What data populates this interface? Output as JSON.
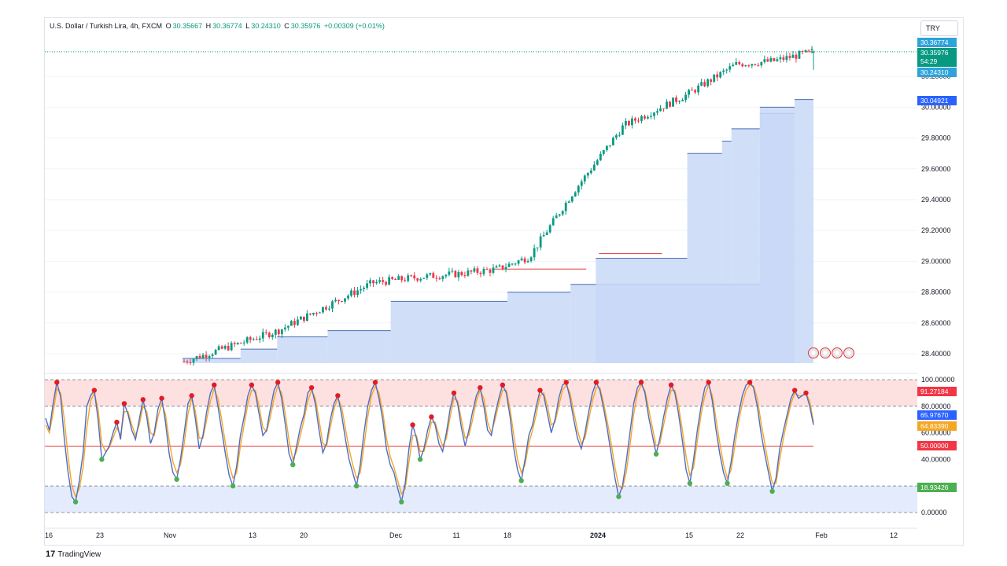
{
  "header": {
    "symbol": "U.S. Dollar / Turkish Lira, 4h, FXCM",
    "open_label": "O",
    "open": "30.35667",
    "high_label": "H",
    "high": "30.36774",
    "low_label": "L",
    "low": "30.24310",
    "close_label": "C",
    "close": "30.35976",
    "change": "+0.00309 (+0.01%)"
  },
  "currency": "TRY",
  "brand": "TradingView",
  "price_tags": {
    "high": "30.36774",
    "last": "30.35976",
    "countdown": "54:29",
    "low": "30.24310",
    "level": "30.04921"
  },
  "osc_tags": {
    "upper_value": "91.27184",
    "k_value": "65.97670",
    "d_value": "64.83390",
    "mid": "50.00000",
    "low_value": "18.93426"
  },
  "colors": {
    "up": "#089981",
    "down": "#f23645",
    "fill": "#c9d8f7",
    "osc_k": "#4e6cc2",
    "osc_d": "#f5a623",
    "high_tag": "#2ea3d9",
    "last_tag": "#089981",
    "level_tag": "#2962ff",
    "upper_band": "#fde0e0",
    "lower_band": "#e3ebfd"
  },
  "chart_data": [
    {
      "type": "candlestick",
      "title": "U.S. Dollar / Turkish Lira, 4h, FXCM",
      "ylabel": "TRY",
      "ylim": [
        28.35,
        30.42
      ],
      "yticks": [
        "30.20000",
        "30.00000",
        "29.80000",
        "29.60000",
        "29.40000",
        "29.20000",
        "29.00000",
        "28.80000",
        "28.60000",
        "28.40000"
      ],
      "yvals": [
        30.2,
        30.0,
        29.8,
        29.6,
        29.4,
        29.2,
        29.0,
        28.8,
        28.6,
        28.4
      ],
      "xticks": [
        "16",
        "23",
        "Nov",
        "13",
        "20",
        "Dec",
        "11",
        "18",
        "2024",
        "15",
        "22",
        "Feb",
        "12"
      ],
      "trend": {
        "x": [
          0,
          0.15,
          0.3,
          0.38,
          0.44,
          0.5,
          0.55,
          0.62,
          0.7,
          0.8,
          0.88,
          0.94,
          1.0
        ],
        "y": [
          28.35,
          28.55,
          28.86,
          28.9,
          28.92,
          28.95,
          29.03,
          29.45,
          29.88,
          30.08,
          30.28,
          30.3,
          30.36
        ]
      },
      "last": {
        "open": 30.35667,
        "high": 30.36774,
        "low": 30.2431,
        "close": 30.35976
      },
      "support_steps": [
        {
          "x0": 0.0,
          "x1": 0.092,
          "level": 28.37
        },
        {
          "x0": 0.092,
          "x1": 0.15,
          "level": 28.43
        },
        {
          "x0": 0.15,
          "x1": 0.23,
          "level": 28.51
        },
        {
          "x0": 0.23,
          "x1": 0.33,
          "level": 28.55
        },
        {
          "x0": 0.33,
          "x1": 0.49,
          "level": 28.74
        },
        {
          "x0": 0.49,
          "x1": 0.515,
          "level": 28.74
        },
        {
          "x0": 0.515,
          "x1": 0.615,
          "level": 28.8
        },
        {
          "x0": 0.615,
          "x1": 0.97,
          "level": 28.85
        },
        {
          "x0": 0.655,
          "x1": 0.8,
          "level": 29.02
        },
        {
          "x0": 0.8,
          "x1": 0.855,
          "level": 29.7
        },
        {
          "x0": 0.855,
          "x1": 0.87,
          "level": 29.78
        },
        {
          "x0": 0.87,
          "x1": 0.915,
          "level": 29.86
        },
        {
          "x0": 0.915,
          "x1": 0.97,
          "level": 29.96
        },
        {
          "x0": 0.915,
          "x1": 0.97,
          "level": 30.0
        },
        {
          "x0": 0.97,
          "x1": 1.0,
          "level": 30.05
        }
      ],
      "resistance_boxes": [
        {
          "x0": 0.49,
          "x1": 0.64,
          "top": 28.95
        },
        {
          "x0": 0.66,
          "x1": 0.76,
          "top": 29.05
        },
        {
          "x0": 0.988,
          "x1": 1.0,
          "top": 30.36
        }
      ]
    },
    {
      "type": "line",
      "title": "",
      "ylim": [
        0,
        100
      ],
      "yticks": [
        "100.00000",
        "80.00000",
        "60.00000",
        "40.00000",
        "0.00000"
      ],
      "yvals": [
        100,
        80,
        60,
        40,
        0
      ],
      "reference_lines": [
        100,
        80,
        50,
        20,
        0
      ],
      "series": [
        {
          "values": [
            71,
            62,
            82,
            98,
            87,
            55,
            30,
            12,
            8,
            24,
            45,
            80,
            88,
            92,
            70,
            40,
            45,
            50,
            60,
            68,
            55,
            82,
            74,
            62,
            55,
            70,
            85,
            72,
            52,
            60,
            78,
            86,
            68,
            44,
            30,
            25,
            40,
            60,
            82,
            88,
            70,
            48,
            58,
            76,
            90,
            96,
            80,
            62,
            44,
            28,
            20,
            35,
            58,
            72,
            88,
            96,
            90,
            74,
            58,
            62,
            78,
            92,
            98,
            86,
            66,
            44,
            36,
            50,
            64,
            74,
            90,
            94,
            82,
            62,
            45,
            52,
            70,
            82,
            88,
            74,
            56,
            40,
            30,
            20,
            36,
            60,
            80,
            92,
            98,
            86,
            70,
            48,
            36,
            30,
            18,
            8,
            22,
            48,
            66,
            56,
            40,
            48,
            62,
            72,
            66,
            52,
            46,
            60,
            78,
            90,
            82,
            64,
            50,
            62,
            76,
            88,
            94,
            80,
            62,
            58,
            74,
            86,
            96,
            90,
            72,
            48,
            32,
            24,
            40,
            58,
            66,
            80,
            92,
            88,
            74,
            60,
            70,
            86,
            96,
            98,
            86,
            70,
            56,
            48,
            60,
            76,
            90,
            98,
            92,
            78,
            62,
            44,
            26,
            12,
            20,
            38,
            60,
            82,
            94,
            98,
            90,
            72,
            58,
            44,
            56,
            72,
            86,
            96,
            90,
            74,
            54,
            32,
            22,
            40,
            62,
            80,
            94,
            98,
            84,
            62,
            44,
            30,
            22,
            38,
            58,
            74,
            88,
            96,
            98,
            94,
            80,
            60,
            44,
            30,
            16,
            26,
            48,
            62,
            74,
            86,
            92,
            86,
            88,
            90,
            80,
            66
          ]
        },
        {
          "values": [
            66,
            60,
            75,
            93,
            90,
            70,
            42,
            20,
            12,
            18,
            34,
            64,
            84,
            90,
            78,
            52,
            46,
            49,
            56,
            64,
            58,
            76,
            76,
            66,
            58,
            66,
            80,
            76,
            60,
            58,
            72,
            82,
            74,
            54,
            38,
            30,
            36,
            52,
            74,
            86,
            76,
            56,
            56,
            70,
            84,
            93,
            86,
            70,
            52,
            36,
            26,
            30,
            50,
            66,
            82,
            92,
            92,
            80,
            64,
            61,
            72,
            86,
            95,
            90,
            74,
            54,
            40,
            46,
            58,
            70,
            84,
            92,
            86,
            70,
            52,
            50,
            64,
            78,
            86,
            80,
            64,
            48,
            36,
            26,
            30,
            50,
            72,
            88,
            95,
            90,
            76,
            56,
            42,
            34,
            24,
            14,
            18,
            38,
            58,
            58,
            46,
            46,
            56,
            68,
            68,
            58,
            50,
            56,
            72,
            86,
            84,
            70,
            56,
            58,
            70,
            84,
            92,
            86,
            68,
            60,
            70,
            82,
            92,
            92,
            78,
            58,
            40,
            30,
            36,
            52,
            62,
            74,
            88,
            90,
            80,
            66,
            68,
            80,
            92,
            96,
            90,
            76,
            62,
            52,
            56,
            70,
            84,
            94,
            94,
            82,
            68,
            52,
            34,
            20,
            18,
            30,
            50,
            74,
            90,
            96,
            92,
            78,
            64,
            50,
            52,
            66,
            80,
            92,
            92,
            80,
            62,
            42,
            28,
            34,
            54,
            74,
            88,
            96,
            88,
            70,
            52,
            36,
            26,
            32,
            50,
            68,
            82,
            92,
            96,
            95,
            86,
            68,
            52,
            36,
            22,
            22,
            40,
            56,
            70,
            82,
            90,
            88,
            88,
            90,
            84,
            68
          ]
        }
      ]
    }
  ]
}
